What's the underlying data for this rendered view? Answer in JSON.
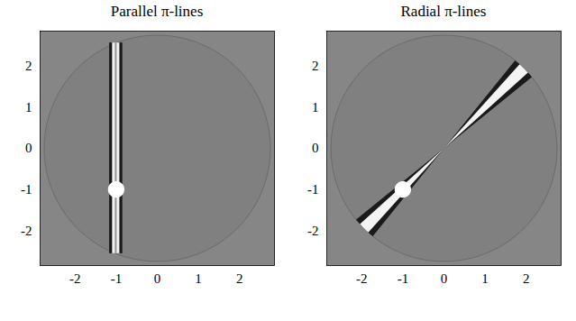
{
  "chart_data": [
    {
      "type": "image",
      "title": "Parallel π-lines",
      "xlim": [
        -2.85,
        2.85
      ],
      "ylim": [
        -2.85,
        2.85
      ],
      "xticks": [
        -2,
        -1,
        0,
        1,
        2
      ],
      "yticks": [
        -2,
        -1,
        0,
        1,
        2
      ],
      "field_of_view_radius": 2.75,
      "disk": {
        "x": -1,
        "y": -1,
        "r": 0.2
      },
      "streak": {
        "direction": "parallel",
        "x": -1,
        "y": -1,
        "angle": 90
      }
    },
    {
      "type": "image",
      "title": "Radial π-lines",
      "xlim": [
        -2.85,
        2.85
      ],
      "ylim": [
        -2.85,
        2.85
      ],
      "xticks": [
        -2,
        -1,
        0,
        1,
        2
      ],
      "yticks": [
        -2,
        -1,
        0,
        1,
        2
      ],
      "field_of_view_radius": 2.75,
      "disk": {
        "x": -1,
        "y": -1,
        "r": 0.2
      },
      "streak": {
        "direction": "radial",
        "x": -1,
        "y": -1,
        "angle": 45
      }
    }
  ]
}
